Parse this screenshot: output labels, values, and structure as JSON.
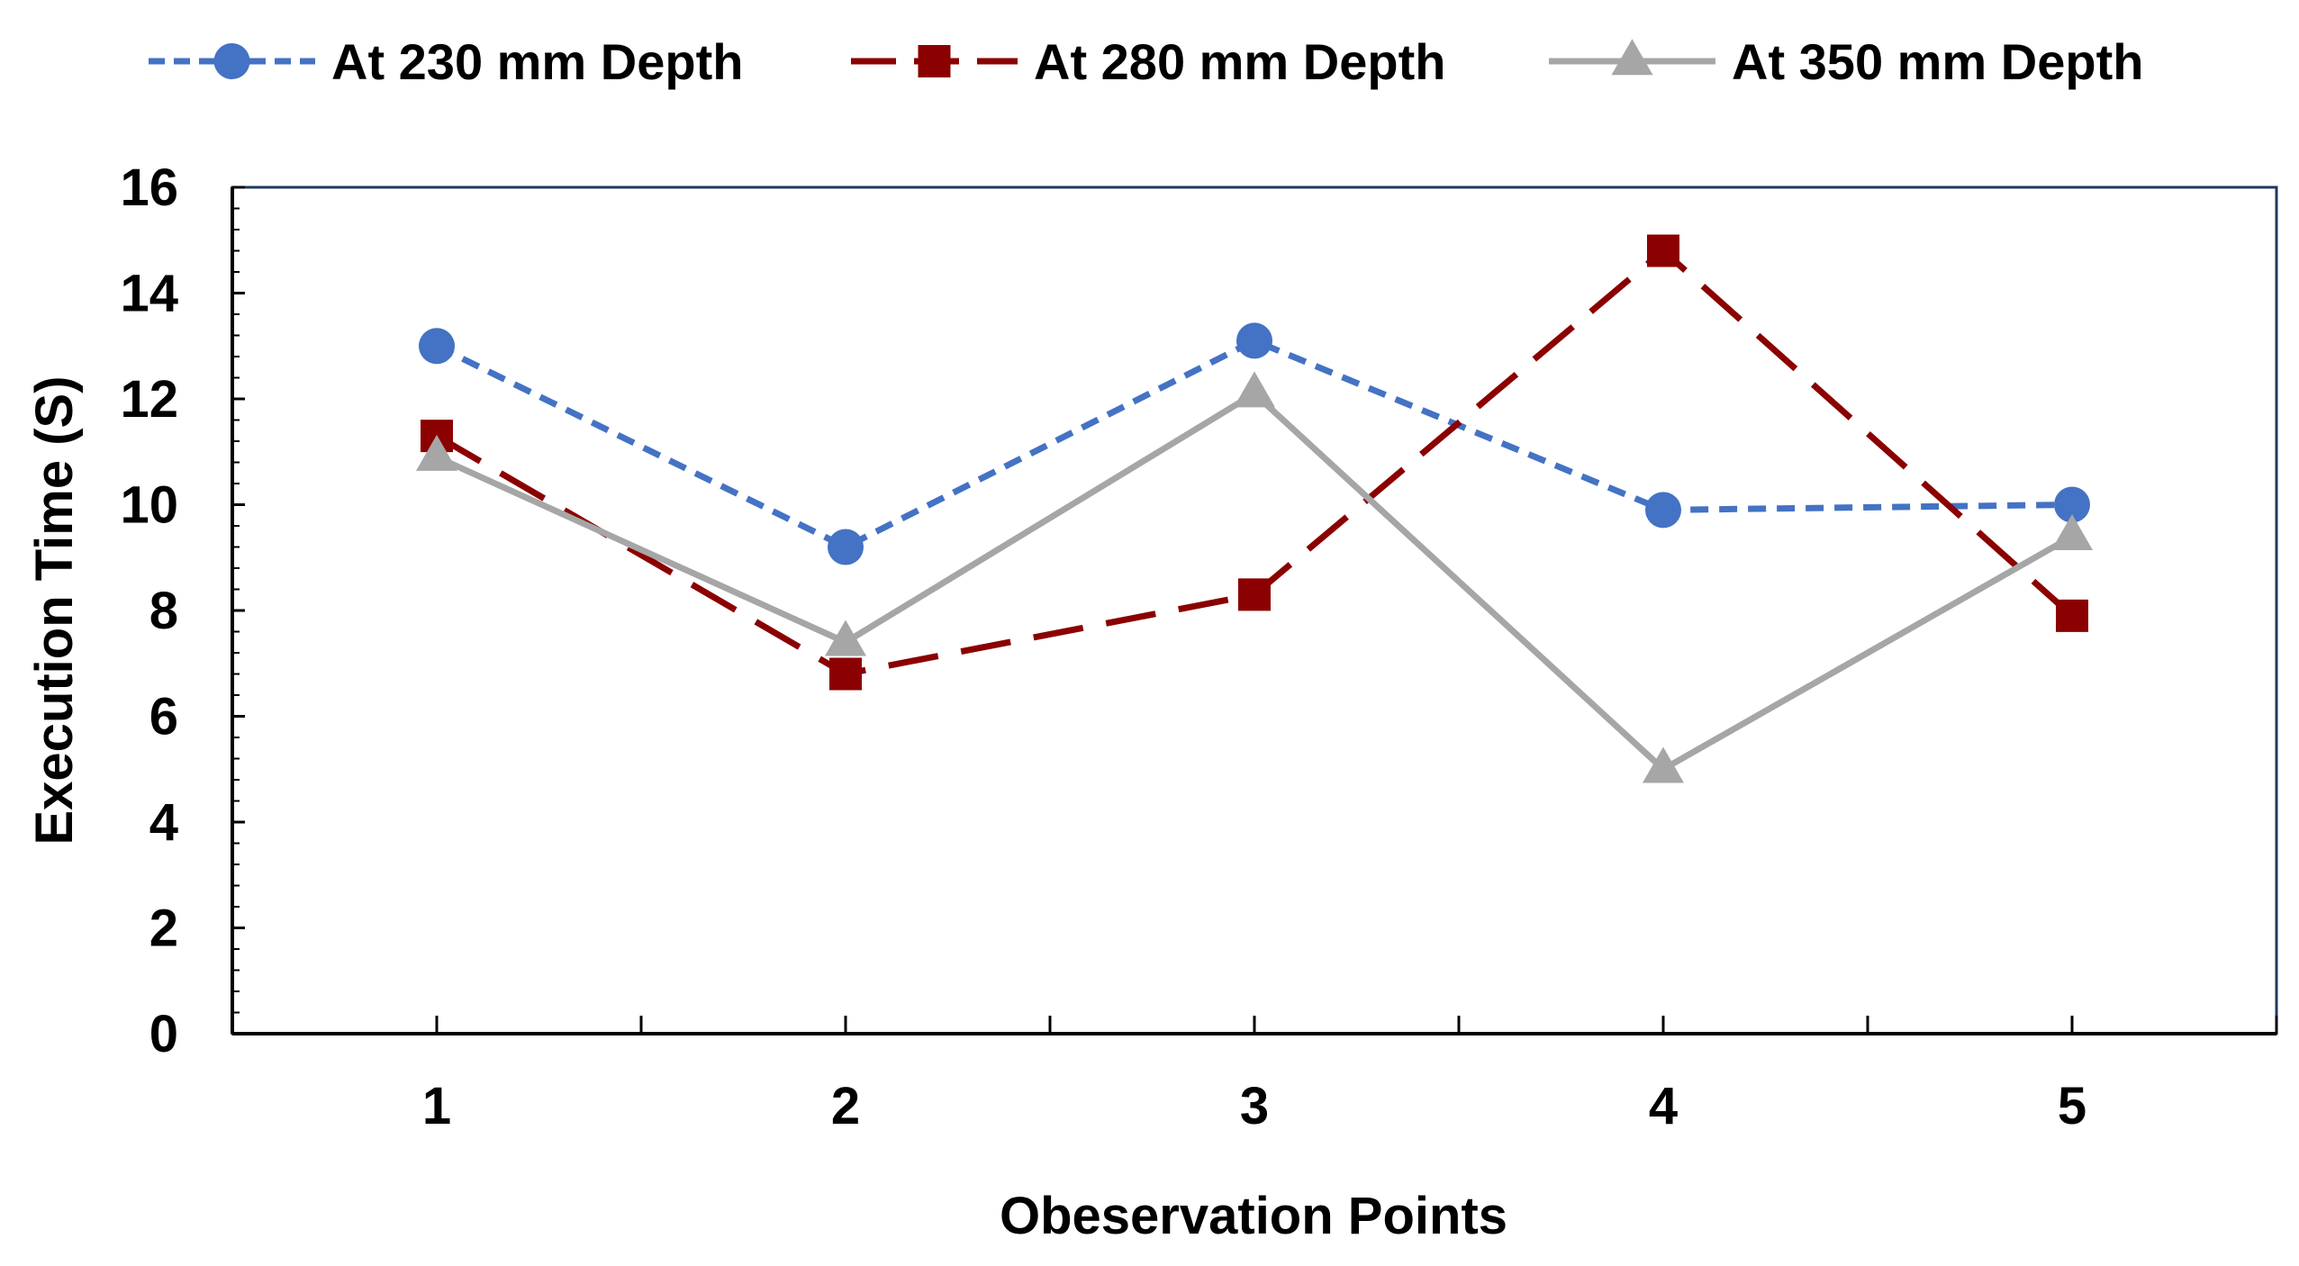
{
  "chart_data": {
    "type": "line",
    "title": "",
    "xlabel": "Obeservation Points",
    "ylabel": "Execution Time (S)",
    "categories": [
      "1",
      "2",
      "3",
      "4",
      "5"
    ],
    "x": [
      1,
      2,
      3,
      4,
      5
    ],
    "xlim": [
      0.5,
      5.5
    ],
    "ylim": [
      0,
      16
    ],
    "yticks": [
      "0",
      "2",
      "4",
      "6",
      "8",
      "10",
      "12",
      "14",
      "16"
    ],
    "grid": false,
    "legend_position": "top",
    "series": [
      {
        "name": "At 230 mm Depth",
        "values": [
          13.0,
          9.2,
          13.1,
          9.9,
          10.0
        ],
        "color": "#4472C4",
        "line_style": "short-dash",
        "marker": "circle"
      },
      {
        "name": "At 280 mm Depth",
        "values": [
          11.3,
          6.8,
          8.3,
          14.8,
          7.9
        ],
        "color": "#8B0000",
        "line_style": "long-dash",
        "marker": "square"
      },
      {
        "name": "At 350 mm Depth",
        "values": [
          10.9,
          7.4,
          12.1,
          5.0,
          9.4
        ],
        "color": "#A6A6A6",
        "line_style": "solid",
        "marker": "triangle"
      }
    ],
    "plot_border_color": "#1F3864"
  }
}
